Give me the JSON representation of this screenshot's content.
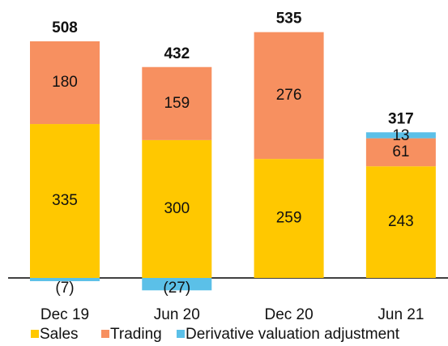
{
  "chart_data": {
    "type": "stacked-bar",
    "categories": [
      "Dec 19",
      "Jun 20",
      "Dec 20",
      "Jun 21"
    ],
    "series": [
      {
        "name": "Sales",
        "color": "#ffc800",
        "values": [
          335,
          300,
          259,
          243
        ]
      },
      {
        "name": "Trading",
        "color": "#f79060",
        "values": [
          180,
          159,
          276,
          61
        ]
      },
      {
        "name": "Derivative valuation adjustment",
        "color": "#5bc0e8",
        "values": [
          -7,
          -27,
          0,
          13
        ],
        "value_labels": [
          "(7)",
          "(27)",
          null,
          "13"
        ]
      }
    ],
    "totals": [
      508,
      432,
      535,
      317
    ]
  }
}
